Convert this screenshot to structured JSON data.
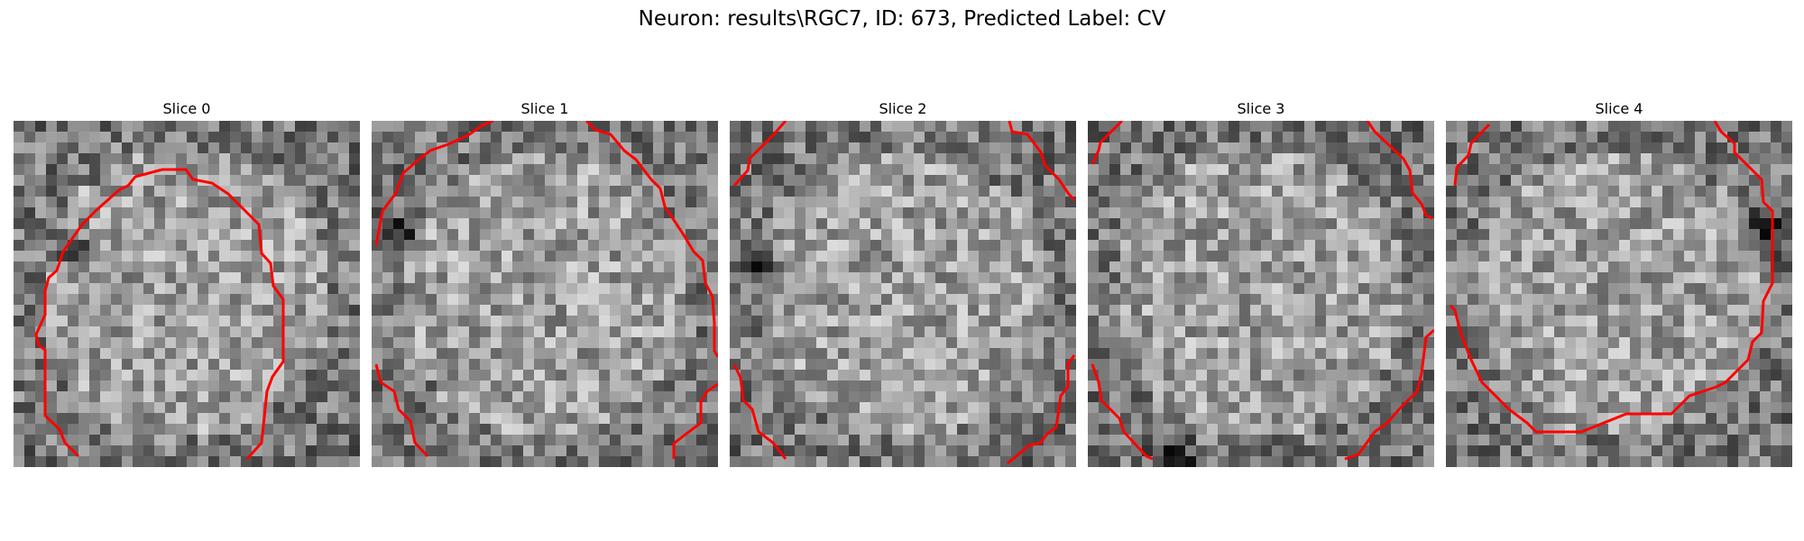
{
  "figure": {
    "title": "Neuron: results\\RGC7, ID: 673, Predicted Label: CV"
  },
  "image": {
    "grid_size": 32,
    "contour_color": "#ff0000",
    "colormap": "grayscale"
  },
  "slices": [
    {
      "title": "Slice 0",
      "dark_blob": [
        0.16,
        0.36
      ]
    },
    {
      "title": "Slice 1",
      "dark_blob": [
        0.07,
        0.33
      ]
    },
    {
      "title": "Slice 2",
      "dark_blob": [
        0.1,
        0.43
      ]
    },
    {
      "title": "Slice 3",
      "dark_blob": [
        0.25,
        0.97
      ]
    },
    {
      "title": "Slice 4",
      "dark_blob": [
        0.93,
        0.32
      ]
    }
  ]
}
